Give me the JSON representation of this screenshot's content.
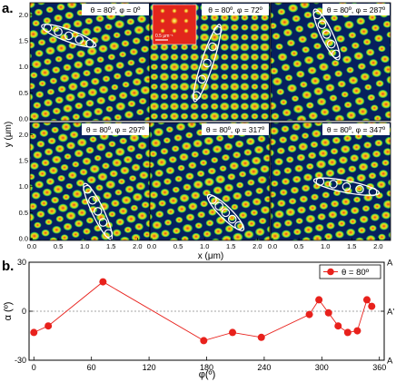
{
  "figure": {
    "panel_a_label": "a.",
    "panel_b_label": "b."
  },
  "panel_a": {
    "ylabel": "y (μm)",
    "xlabel": "x (μm)",
    "x_ticks": [
      "0.0",
      "0.5",
      "1.0",
      "1.5",
      "2.0"
    ],
    "y_ticks": [
      "0.0",
      "0.5",
      "1.0",
      "1.5",
      "2.0"
    ],
    "inset_label": "0.5 μm⁻¹",
    "subpanels": [
      {
        "caption": "θ = 80º, φ = 0º"
      },
      {
        "caption": "θ = 80º, φ = 72º"
      },
      {
        "caption": "θ = 80º, φ = 287º"
      },
      {
        "caption": "θ = 80º, φ = 297º"
      },
      {
        "caption": "θ = 80º, φ = 317º"
      },
      {
        "caption": "θ = 80º, φ = 347º"
      }
    ],
    "colors": {
      "background": "#06205e",
      "spot_outer": "#1fb65a",
      "spot_mid": "#d8e21a",
      "spot_core": "#e8331b",
      "chain": "#ffffff"
    }
  },
  "chart_data": {
    "type": "scatter",
    "title": "",
    "xlabel": "φ(º)",
    "ylabel": "α (º)",
    "xlim": [
      -5,
      365
    ],
    "ylim": [
      -30,
      30
    ],
    "x_ticks": [
      "0",
      "60",
      "120",
      "180",
      "240",
      "300",
      "360"
    ],
    "y_ticks": [
      "-30",
      "0",
      "30"
    ],
    "right_labels": [
      "A",
      "A'",
      "A"
    ],
    "reference_line_y": 0,
    "legend": {
      "position": "top-right",
      "entries": [
        "θ = 80º"
      ]
    },
    "series": [
      {
        "name": "θ = 80º",
        "color": "#e8211c",
        "x": [
          0,
          15,
          72,
          177,
          207,
          237,
          287,
          297,
          307,
          317,
          327,
          337,
          347,
          352
        ],
        "y": [
          -13,
          -9,
          18,
          -18,
          -13,
          -16,
          -2,
          7,
          -1,
          -9,
          -13,
          -12,
          7,
          3
        ]
      }
    ]
  }
}
